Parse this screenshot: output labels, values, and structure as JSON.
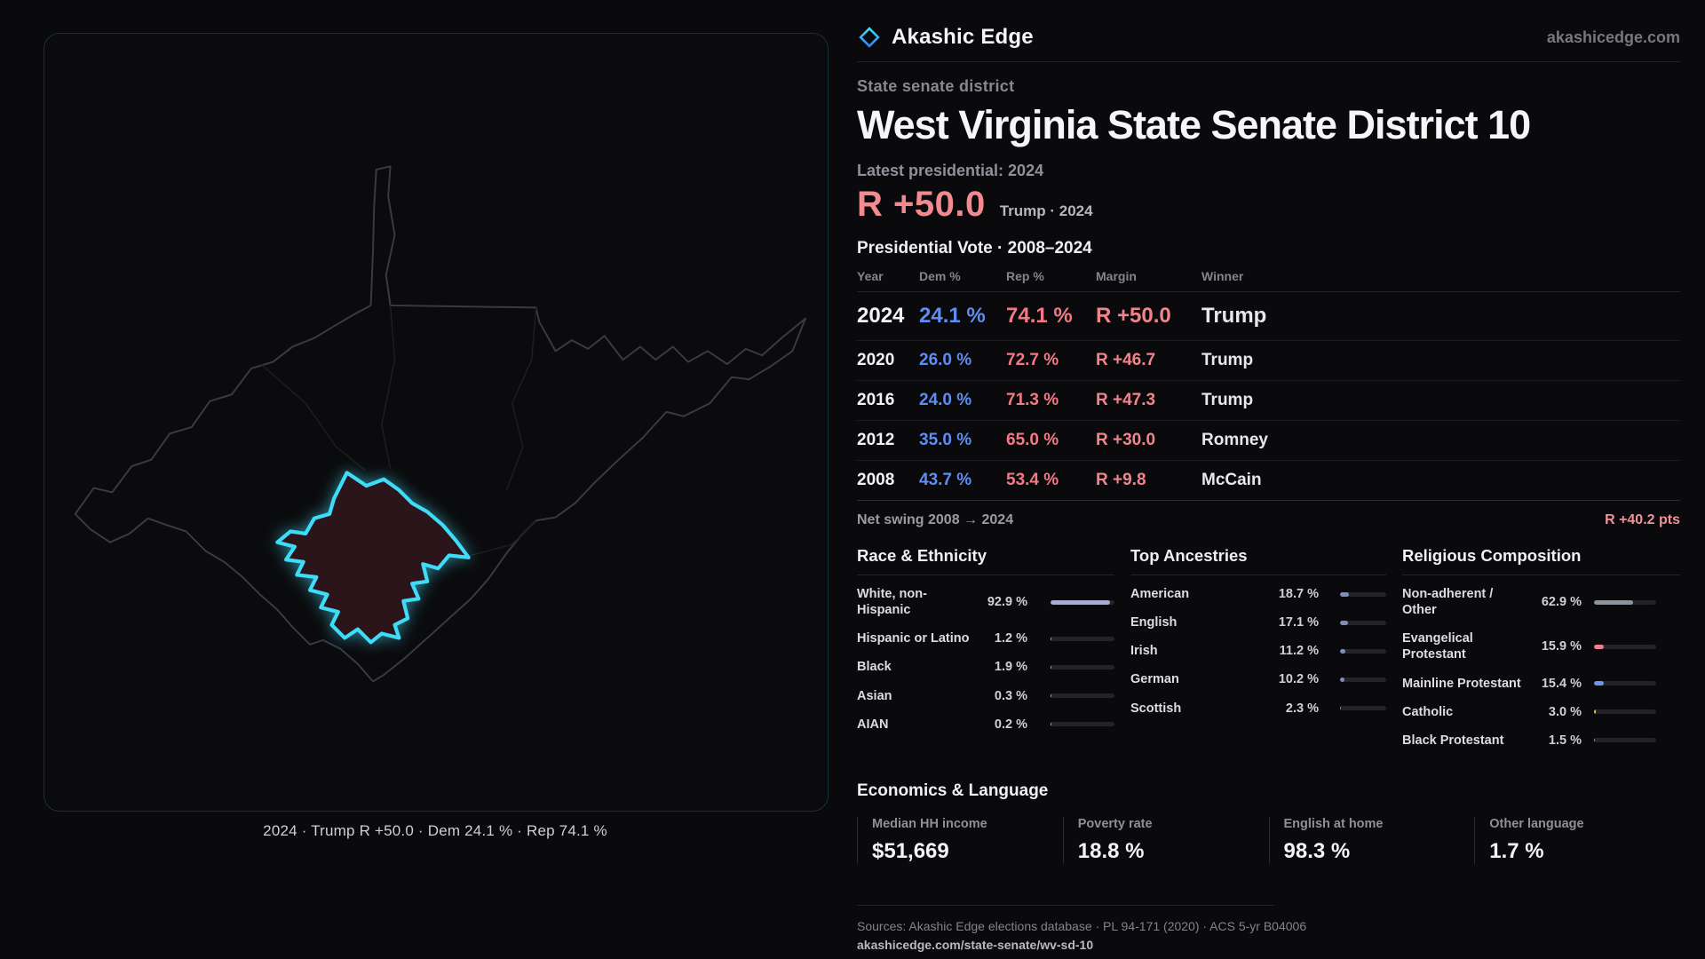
{
  "theme": {
    "bg": "#0a0a0c",
    "accent_cyan": "#3edcf6",
    "rep_red": "#f28b90",
    "dem_blue": "#5f8df2",
    "muted_gray": "#88888f"
  },
  "map": {
    "caption": "2024 · Trump R +50.0 · Dem 24.1 % · Rep 74.1 %"
  },
  "header": {
    "brand": "Akashic Edge",
    "site": "akashicedge.com",
    "kicker": "State senate district",
    "title": "West Virginia State Senate District 10",
    "latest_label": "Latest presidential: 2024",
    "headline_margin": "R +50.0",
    "headline_sub": "Trump · 2024"
  },
  "vote_table": {
    "title": "Presidential Vote · 2008–2024",
    "columns": [
      "Year",
      "Dem %",
      "Rep %",
      "Margin",
      "Winner"
    ],
    "rows": [
      {
        "year": "2024",
        "dem": "24.1 %",
        "rep": "74.1 %",
        "margin": "R +50.0",
        "winner": "Trump"
      },
      {
        "year": "2020",
        "dem": "26.0 %",
        "rep": "72.7 %",
        "margin": "R +46.7",
        "winner": "Trump"
      },
      {
        "year": "2016",
        "dem": "24.0 %",
        "rep": "71.3 %",
        "margin": "R +47.3",
        "winner": "Trump"
      },
      {
        "year": "2012",
        "dem": "35.0 %",
        "rep": "65.0 %",
        "margin": "R +30.0",
        "winner": "Romney"
      },
      {
        "year": "2008",
        "dem": "43.7 %",
        "rep": "53.4 %",
        "margin": "R +9.8",
        "winner": "McCain"
      }
    ],
    "net_swing_label": "Net swing 2008 → 2024",
    "net_swing_value": "R +40.2 pts"
  },
  "demographics": {
    "race": {
      "title": "Race & Ethnicity",
      "items": [
        {
          "label": "White, non-\nHispanic",
          "value": "92.9 %",
          "pct": 92.9
        },
        {
          "label": "Hispanic or Latino",
          "value": "1.2 %",
          "pct": 1.2
        },
        {
          "label": "Black",
          "value": "1.9 %",
          "pct": 1.9
        },
        {
          "label": "Asian",
          "value": "0.3 %",
          "pct": 0.3
        },
        {
          "label": "AIAN",
          "value": "0.2 %",
          "pct": 0.2
        }
      ]
    },
    "ancestries": {
      "title": "Top Ancestries",
      "items": [
        {
          "label": "American",
          "value": "18.7 %",
          "pct": 18.7
        },
        {
          "label": "English",
          "value": "17.1 %",
          "pct": 17.1
        },
        {
          "label": "Irish",
          "value": "11.2 %",
          "pct": 11.2
        },
        {
          "label": "German",
          "value": "10.2 %",
          "pct": 10.2
        },
        {
          "label": "Scottish",
          "value": "2.3 %",
          "pct": 2.3
        }
      ]
    },
    "religion": {
      "title": "Religious Composition",
      "items": [
        {
          "label": "Non-adherent /\nOther",
          "value": "62.9 %",
          "pct": 62.9,
          "color": "#8e949c"
        },
        {
          "label": "Evangelical\nProtestant",
          "value": "15.9 %",
          "pct": 15.9,
          "color": "#ee7f88"
        },
        {
          "label": "Mainline Protestant",
          "value": "15.4 %",
          "pct": 15.4,
          "color": "#6c95ee"
        },
        {
          "label": "Catholic",
          "value": "3.0 %",
          "pct": 3.0,
          "color": "#e4c05a"
        },
        {
          "label": "Black Protestant",
          "value": "1.5 %",
          "pct": 1.5,
          "color": "#8e949c"
        }
      ]
    }
  },
  "economics": {
    "title": "Economics & Language",
    "stats": [
      {
        "label": "Median HH income",
        "value": "$51,669"
      },
      {
        "label": "Poverty rate",
        "value": "18.8 %"
      },
      {
        "label": "English at home",
        "value": "98.3 %"
      },
      {
        "label": "Other language",
        "value": "1.7 %"
      }
    ]
  },
  "footer": {
    "sources": "Sources: Akashic Edge elections database · PL 94-171 (2020) · ACS 5-yr B04006",
    "permalink": "akashicedge.com/state-senate/wv-sd-10"
  }
}
